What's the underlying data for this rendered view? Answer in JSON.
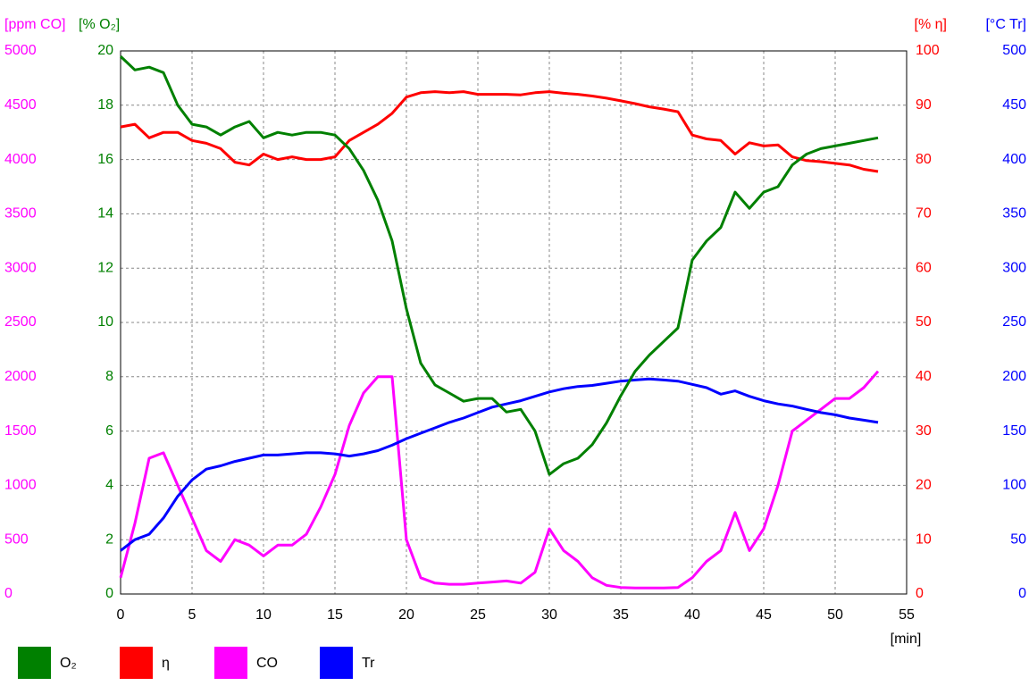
{
  "chart_data": {
    "type": "line",
    "x_label": "[min]",
    "x": [
      0,
      1,
      2,
      3,
      4,
      5,
      6,
      7,
      8,
      9,
      10,
      11,
      12,
      13,
      14,
      15,
      16,
      17,
      18,
      19,
      20,
      21,
      22,
      23,
      24,
      25,
      26,
      27,
      28,
      29,
      30,
      31,
      32,
      33,
      34,
      35,
      36,
      37,
      38,
      39,
      40,
      41,
      42,
      43,
      44,
      45,
      46,
      47,
      48,
      49,
      50,
      51,
      52,
      53
    ],
    "xlim": [
      0,
      55
    ],
    "xticks": [
      0,
      5,
      10,
      15,
      20,
      25,
      30,
      35,
      40,
      45,
      50,
      55
    ],
    "grid": true,
    "y_axes": [
      {
        "label": "[ppm CO]",
        "color": "#ff00ff",
        "lim": [
          0,
          5000
        ],
        "ticks": [
          0,
          500,
          1000,
          1500,
          2000,
          2500,
          3000,
          3500,
          4000,
          4500,
          5000
        ]
      },
      {
        "label": "[% O₂]",
        "color": "#008000",
        "lim": [
          0,
          20
        ],
        "ticks": [
          0,
          2,
          4,
          6,
          8,
          10,
          12,
          14,
          16,
          18,
          20
        ]
      },
      {
        "label": "[% η]",
        "color": "#ff0000",
        "lim": [
          0,
          100
        ],
        "ticks": [
          0,
          10,
          20,
          30,
          40,
          50,
          60,
          70,
          80,
          90,
          100
        ]
      },
      {
        "label": "[°C Tr]",
        "color": "#0000ff",
        "lim": [
          0,
          500
        ],
        "ticks": [
          0,
          50,
          100,
          150,
          200,
          250,
          300,
          350,
          400,
          450,
          500
        ]
      }
    ],
    "series": [
      {
        "name": "O₂",
        "color": "#008000",
        "axis": 1,
        "values": [
          19.8,
          19.3,
          19.4,
          19.2,
          18,
          17.3,
          17.2,
          16.9,
          17.2,
          17.4,
          16.8,
          17,
          16.9,
          17,
          17,
          16.9,
          16.4,
          15.6,
          14.5,
          13,
          10.5,
          8.5,
          7.7,
          7.4,
          7.1,
          7.2,
          7.2,
          6.7,
          6.8,
          6,
          4.4,
          4.8,
          5,
          5.5,
          6.3,
          7.3,
          8.2,
          8.8,
          9.3,
          9.8,
          12.3,
          13,
          13.5,
          14.8,
          14.2,
          14.8,
          15,
          15.8,
          16.2,
          16.4,
          16.5,
          16.6,
          16.7,
          16.8
        ]
      },
      {
        "name": "η",
        "color": "#ff0000",
        "axis": 2,
        "values": [
          86,
          86.5,
          84,
          85,
          85,
          83.5,
          83,
          82,
          79.5,
          79,
          81,
          80,
          80.5,
          80,
          80,
          80.5,
          83.5,
          85,
          86.5,
          88.5,
          91.5,
          92.3,
          92.5,
          92.3,
          92.5,
          92,
          92,
          92,
          91.9,
          92.3,
          92.5,
          92.2,
          92,
          91.7,
          91.3,
          90.8,
          90.3,
          89.7,
          89.3,
          88.8,
          84.5,
          83.8,
          83.5,
          81,
          83.1,
          82.5,
          82.7,
          80.5,
          79.8,
          79.6,
          79.3,
          79,
          78.2,
          77.8
        ]
      },
      {
        "name": "CO",
        "color": "#ff00ff",
        "axis": 0,
        "values": [
          150,
          650,
          1250,
          1300,
          1000,
          700,
          400,
          300,
          500,
          450,
          350,
          450,
          450,
          550,
          800,
          1100,
          1550,
          1850,
          2000,
          2000,
          500,
          150,
          100,
          90,
          90,
          100,
          110,
          120,
          100,
          200,
          600,
          400,
          300,
          150,
          80,
          60,
          55,
          55,
          55,
          60,
          150,
          300,
          400,
          750,
          400,
          600,
          1000,
          1500,
          1600,
          1700,
          1800,
          1800,
          1900,
          2050
        ]
      },
      {
        "name": "Tr",
        "color": "#0000ff",
        "axis": 3,
        "values": [
          40,
          50,
          55,
          70,
          90,
          105,
          115,
          118,
          122,
          125,
          128,
          128,
          129,
          130,
          130,
          129,
          127,
          129,
          132,
          137,
          143,
          148,
          153,
          158,
          162,
          167,
          172,
          175,
          178,
          182,
          186,
          189,
          191,
          192,
          194,
          196,
          197,
          198,
          197,
          196,
          193,
          190,
          184,
          187,
          182,
          178,
          175,
          173,
          170,
          167,
          165,
          162,
          160,
          158
        ]
      }
    ]
  }
}
